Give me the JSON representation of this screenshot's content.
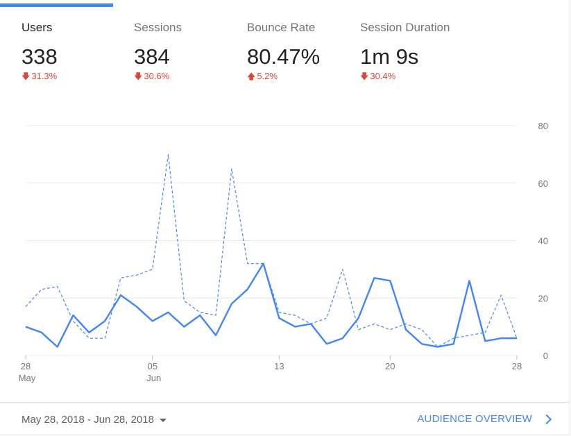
{
  "metrics": [
    {
      "label": "Users",
      "value": "338",
      "delta": "31.3%",
      "direction": "down",
      "active": true
    },
    {
      "label": "Sessions",
      "value": "384",
      "delta": "30.6%",
      "direction": "down",
      "active": false
    },
    {
      "label": "Bounce Rate",
      "value": "80.47%",
      "delta": "5.2%",
      "direction": "up",
      "active": false
    },
    {
      "label": "Session Duration",
      "value": "1m 9s",
      "delta": "30.4%",
      "direction": "down",
      "active": false
    }
  ],
  "colors": {
    "accent": "#4285f4",
    "negative": "#db4437",
    "grid": "#e8e8e8",
    "axis_text": "#757575"
  },
  "chart_data": {
    "type": "line",
    "x": [
      "May 28",
      "May 29",
      "May 30",
      "May 31",
      "Jun 01",
      "Jun 02",
      "Jun 03",
      "Jun 04",
      "Jun 05",
      "Jun 06",
      "Jun 07",
      "Jun 08",
      "Jun 09",
      "Jun 10",
      "Jun 11",
      "Jun 12",
      "Jun 13",
      "Jun 14",
      "Jun 15",
      "Jun 16",
      "Jun 17",
      "Jun 18",
      "Jun 19",
      "Jun 20",
      "Jun 21",
      "Jun 22",
      "Jun 23",
      "Jun 24",
      "Jun 25",
      "Jun 26",
      "Jun 27",
      "Jun 28"
    ],
    "series": [
      {
        "style": "solid",
        "values": [
          10,
          8,
          3,
          14,
          8,
          12,
          21,
          17,
          12,
          15,
          10,
          14,
          7,
          18,
          23,
          32,
          13,
          10,
          11,
          4,
          6,
          13,
          27,
          26,
          9,
          4,
          3,
          4,
          26,
          5,
          6,
          6
        ]
      },
      {
        "style": "dashed",
        "values": [
          17,
          23,
          24,
          12,
          6,
          6,
          27,
          28,
          30,
          70,
          19,
          15,
          14,
          65,
          32,
          32,
          15,
          14,
          11,
          13,
          30,
          9,
          11,
          9,
          11,
          9,
          3,
          6,
          7,
          8,
          21,
          6
        ]
      }
    ],
    "ylim": [
      0,
      80
    ],
    "yticks": [
      0,
      20,
      40,
      60,
      80
    ],
    "xticks": [
      {
        "index": 0,
        "day": "28",
        "month": "May"
      },
      {
        "index": 8,
        "day": "05",
        "month": "Jun"
      },
      {
        "index": 16,
        "day": "13",
        "month": ""
      },
      {
        "index": 23,
        "day": "20",
        "month": ""
      },
      {
        "index": 31,
        "day": "28",
        "month": ""
      }
    ],
    "grid": true,
    "y_axis_side": "right"
  },
  "footer": {
    "date_range": "May 28, 2018 - Jun 28, 2018",
    "overview_link": "AUDIENCE OVERVIEW"
  }
}
